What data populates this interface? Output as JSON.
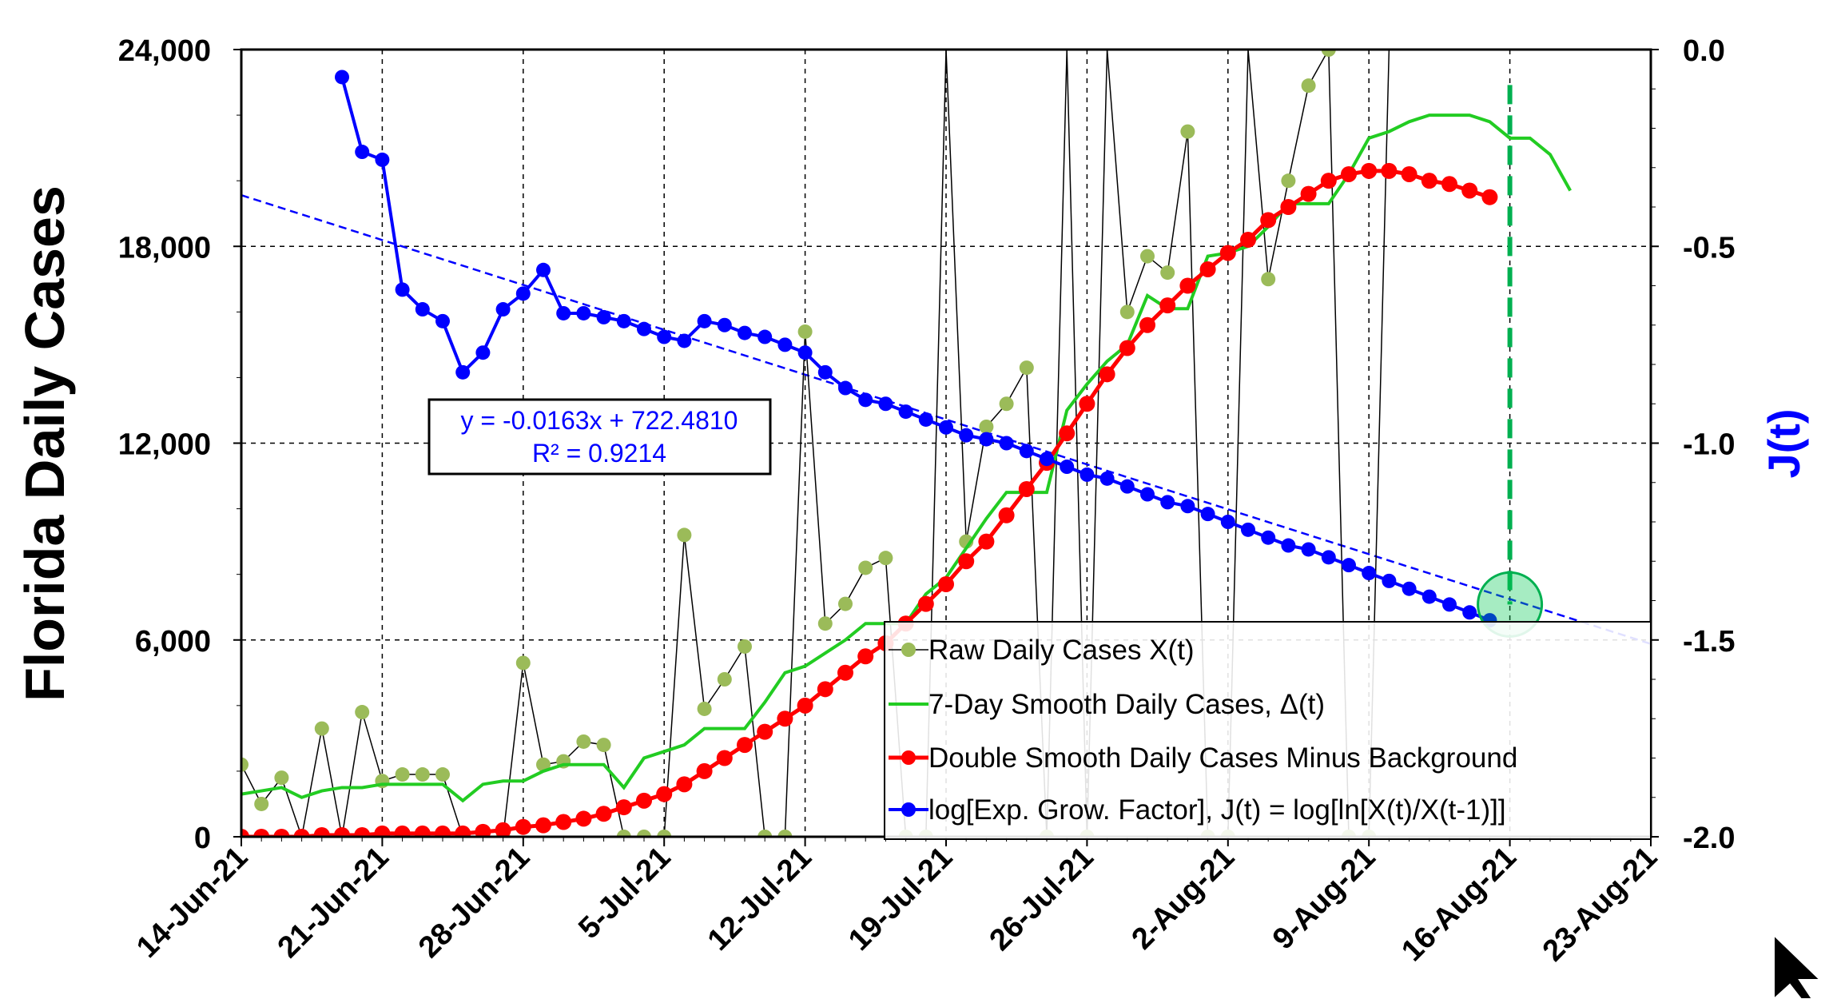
{
  "chart_data": {
    "type": "line",
    "ylabel": "Florida Daily Cases",
    "y2label": "J(t)",
    "x_ticks": [
      "14-Jun-21",
      "21-Jun-21",
      "28-Jun-21",
      "5-Jul-21",
      "12-Jul-21",
      "19-Jul-21",
      "26-Jul-21",
      "2-Aug-21",
      "9-Aug-21",
      "16-Aug-21",
      "23-Aug-21"
    ],
    "xlim": [
      "14-Jun-21",
      "23-Aug-21"
    ],
    "ylim": [
      0,
      24000
    ],
    "y_ticks": [
      "0",
      "6,000",
      "12,000",
      "18,000",
      "24,000"
    ],
    "y2lim": [
      -2.0,
      0.0
    ],
    "y2_ticks": [
      "-2.0",
      "-1.5",
      "-1.0",
      "-0.5",
      "0.0"
    ],
    "grid": true,
    "legend_position": "bottom-right",
    "colors": {
      "raw": "#9bbb59",
      "smooth7": "#22cc22",
      "double": "#ff0000",
      "j": "#0000ff",
      "marker": "#00b050"
    },
    "trendline": {
      "label_eq": "y = -0.0163x + 722.4810",
      "label_r2": "R² = 0.9214",
      "start": [
        "14-Jun-21",
        -0.37
      ],
      "end": [
        "23-Aug-21",
        -1.51
      ]
    },
    "vline_date": "16-Aug-21",
    "highlight": {
      "date": "16-Aug-21",
      "j": -1.41
    },
    "series": [
      {
        "name": "Raw Daily Cases X(t)",
        "axis": "left",
        "x_start": "14-Jun-21",
        "values": [
          2200,
          1000,
          1800,
          0,
          3300,
          0,
          3800,
          1700,
          1900,
          1900,
          1900,
          0,
          0,
          0,
          5300,
          2200,
          2300,
          2900,
          2800,
          0,
          0,
          0,
          9200,
          3900,
          4800,
          5800,
          0,
          0,
          15400,
          6500,
          7100,
          8200,
          8500,
          0,
          0,
          30000,
          9000,
          12500,
          13200,
          14300,
          0,
          30000,
          0,
          30000,
          16000,
          17700,
          17200,
          21500,
          0,
          0,
          30000,
          17000,
          20000,
          22900,
          24000,
          0,
          0,
          30000
        ]
      },
      {
        "name": "7-Day Smooth Daily Cases, Δ(t)",
        "axis": "left",
        "x_start": "14-Jun-21",
        "values": [
          1300,
          1400,
          1500,
          1200,
          1400,
          1500,
          1500,
          1600,
          1600,
          1600,
          1600,
          1100,
          1600,
          1700,
          1700,
          2000,
          2200,
          2200,
          2200,
          1500,
          2400,
          2600,
          2800,
          3300,
          3300,
          3300,
          4100,
          5000,
          5200,
          5600,
          6000,
          6500,
          6500,
          6500,
          7400,
          7900,
          8800,
          9700,
          10500,
          10500,
          10500,
          13000,
          13800,
          14500,
          15000,
          16500,
          16100,
          16100,
          17700,
          17800,
          18000,
          18600,
          19300,
          19300,
          19300,
          20200,
          21300,
          21500,
          21800,
          22000,
          22000,
          22000,
          21800,
          21300,
          21300,
          20800,
          19700
        ]
      },
      {
        "name": "Double Smooth Daily Cases Minus Background",
        "axis": "left",
        "x_start": "14-Jun-21",
        "values": [
          0,
          0,
          0,
          0,
          50,
          50,
          50,
          100,
          100,
          100,
          100,
          100,
          150,
          200,
          300,
          350,
          450,
          550,
          700,
          900,
          1100,
          1300,
          1600,
          2000,
          2400,
          2800,
          3200,
          3600,
          4000,
          4500,
          5000,
          5500,
          5900,
          6500,
          7100,
          7700,
          8400,
          9000,
          9800,
          10600,
          11400,
          12300,
          13200,
          14100,
          14900,
          15600,
          16200,
          16800,
          17300,
          17800,
          18200,
          18800,
          19200,
          19600,
          20000,
          20200,
          20300,
          20300,
          20200,
          20000,
          19900,
          19700,
          19500
        ]
      },
      {
        "name": "log[Exp. Grow. Factor], J(t) = log[ln[X(t)/X(t-1)]]",
        "axis": "right",
        "x_start": "19-Jun-21",
        "values": [
          -0.07,
          -0.26,
          -0.28,
          -0.61,
          -0.66,
          -0.69,
          -0.82,
          -0.77,
          -0.66,
          -0.62,
          -0.56,
          -0.67,
          -0.67,
          -0.68,
          -0.69,
          -0.71,
          -0.73,
          -0.74,
          -0.69,
          -0.7,
          -0.72,
          -0.73,
          -0.75,
          -0.77,
          -0.82,
          -0.86,
          -0.89,
          -0.9,
          -0.92,
          -0.94,
          -0.96,
          -0.98,
          -0.99,
          -1.0,
          -1.02,
          -1.04,
          -1.06,
          -1.08,
          -1.09,
          -1.11,
          -1.13,
          -1.15,
          -1.16,
          -1.18,
          -1.2,
          -1.22,
          -1.24,
          -1.26,
          -1.27,
          -1.29,
          -1.31,
          -1.33,
          -1.35,
          -1.37,
          -1.39,
          -1.41,
          -1.43,
          -1.45
        ]
      }
    ]
  }
}
